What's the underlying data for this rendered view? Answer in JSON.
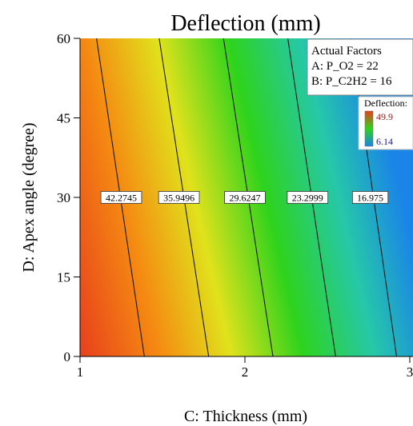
{
  "chart_data": {
    "type": "contour",
    "title": "Deflection (mm)",
    "xlabel": "C: Thickness (mm)",
    "ylabel": "D: Apex angle (degree)",
    "xlim": [
      1,
      3
    ],
    "ylim": [
      0,
      60
    ],
    "x_ticks": [
      1,
      2,
      3
    ],
    "x_tick_labels": [
      "1",
      "2",
      "3"
    ],
    "y_ticks": [
      0,
      15,
      30,
      45,
      60
    ],
    "y_tick_labels": [
      "0",
      "15",
      "30",
      "45",
      "60"
    ],
    "grid": false,
    "contours": [
      {
        "label": "42.2745",
        "x_at_ymin": 1.39,
        "x_at_ymax": 1.1,
        "label_x": 1.25
      },
      {
        "label": "35.9496",
        "x_at_ymin": 1.78,
        "x_at_ymax": 1.48,
        "label_x": 1.6
      },
      {
        "label": "29.6247",
        "x_at_ymin": 2.17,
        "x_at_ymax": 1.87,
        "label_x": 2.0
      },
      {
        "label": "23.2999",
        "x_at_ymin": 2.55,
        "x_at_ymax": 2.26,
        "label_x": 2.38
      },
      {
        "label": "16.975",
        "x_at_ymin": 2.92,
        "x_at_ymax": 2.64,
        "label_x": 2.76
      }
    ],
    "contour_label_y": 30,
    "actual_factors": {
      "title": "Actual Factors",
      "items": [
        "A: P_O2 = 22",
        "B: P_C2H2 = 16"
      ]
    },
    "color_legend": {
      "title": "Deflection:",
      "max_label": "49.9",
      "min_label": "6.14",
      "placement": "top-right"
    },
    "colors": {
      "high": "#e8401c",
      "orange": "#f58a12",
      "yellow": "#e0e21c",
      "green": "#2ed31c",
      "cyan": "#26c8a8",
      "low": "#1a84e8",
      "max_label_color": "#8b1a1a",
      "min_label_color": "#1a1a8b"
    }
  }
}
